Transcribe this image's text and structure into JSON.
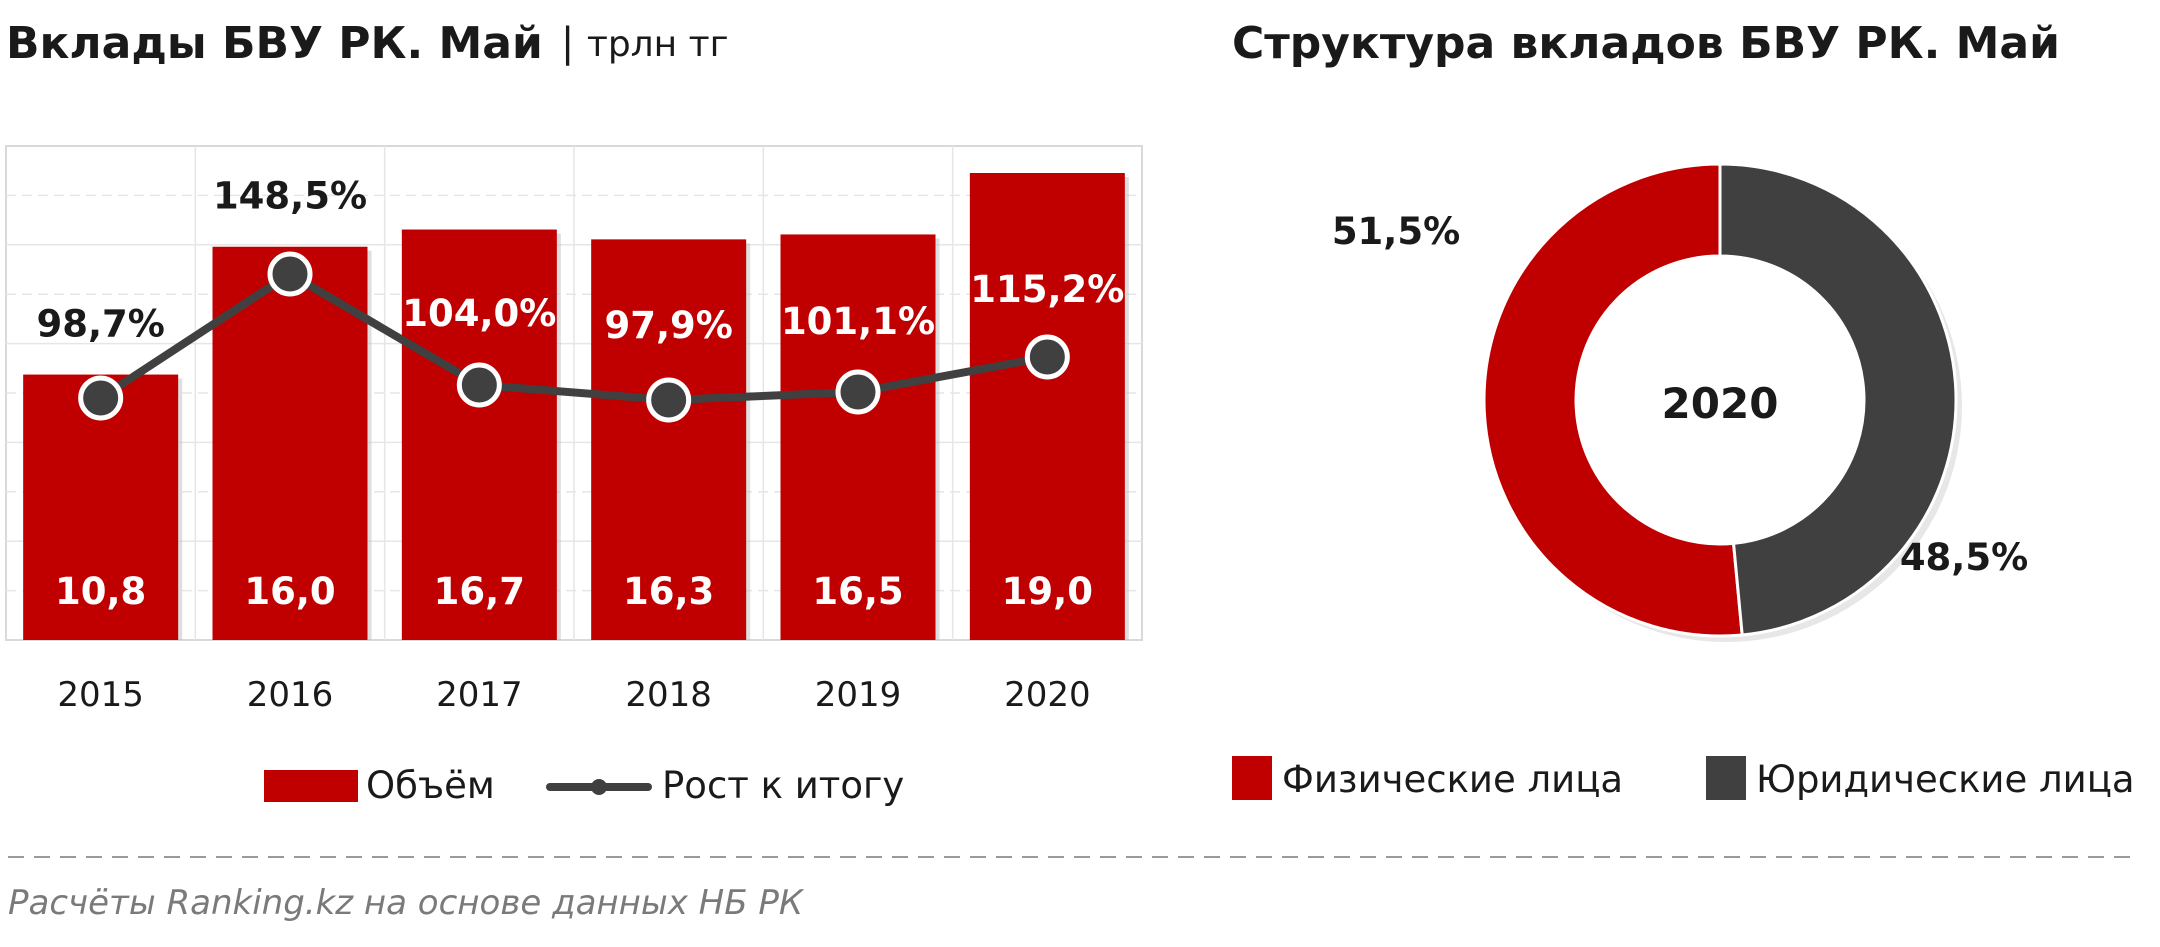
{
  "colors": {
    "volume": "#c00000",
    "growth": "#404040",
    "individuals": "#c00000",
    "legal": "#404040"
  },
  "left_title": "Вклады БВУ РК. Май",
  "left_unit": "трлн тг",
  "right_title": "Структура вкладов БВУ РК. Май",
  "source": "Расчёты Ranking.kz на основе данных НБ РК",
  "chart_data": [
    {
      "type": "bar",
      "title": "Вклады БВУ РК. Май",
      "unit": "трлн тг",
      "categories": [
        "2015",
        "2016",
        "2017",
        "2018",
        "2019",
        "2020"
      ],
      "series": [
        {
          "name": "Объём",
          "type": "bar",
          "values": [
            10.8,
            16.0,
            16.7,
            16.3,
            16.5,
            19.0
          ],
          "labels": [
            "10,8",
            "16,0",
            "16,7",
            "16,3",
            "16,5",
            "19,0"
          ]
        },
        {
          "name": "Рост к итогу",
          "type": "line",
          "values": [
            98.7,
            148.5,
            104.0,
            97.9,
            101.1,
            115.2
          ],
          "labels": [
            "98,7%",
            "148,5%",
            "104,0%",
            "97,9%",
            "101,1%",
            "115,2%"
          ]
        }
      ],
      "grid": true,
      "legend": "bottom"
    },
    {
      "type": "pie",
      "title": "Структура вкладов БВУ РК. Май",
      "center_label": "2020",
      "slices": [
        {
          "name": "Физические лица",
          "value": 51.5,
          "label": "51,5%"
        },
        {
          "name": "Юридические лица",
          "value": 48.5,
          "label": "48,5%"
        }
      ],
      "legend": "bottom"
    }
  ]
}
